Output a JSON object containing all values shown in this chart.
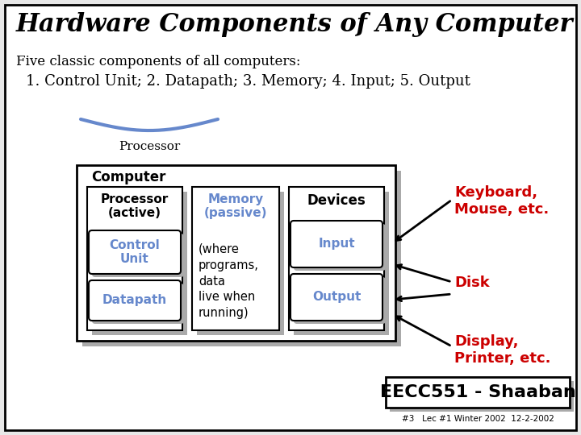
{
  "title": "Hardware Components of Any Computer",
  "subtitle": "Five classic components of all computers:",
  "components_line": "1. Control Unit; 2. Datapath; 3. Memory; 4. Input; 5. Output",
  "processor_label": "Processor",
  "computer_label": "Computer",
  "processor_box_label": "Processor\n(active)",
  "control_unit_label": "Control\nUnit",
  "datapath_label": "Datapath",
  "memory_label": "Memory\n(passive)",
  "memory_desc": "(where\nprograms,\ndata\nlive when\nrunning)",
  "devices_label": "Devices",
  "input_label": "Input",
  "output_label": "Output",
  "keyboard_label": "Keyboard,\nMouse, etc.",
  "disk_label": "Disk",
  "display_label": "Display,\nPrinter, etc.",
  "eecc_label": "EECC551 - Shaaban",
  "bottom_label": "#3   Lec #1 Winter 2002  12-2-2002",
  "bg_color": "#e8e8e8",
  "title_color": "#000000",
  "blue_color": "#6688cc",
  "red_color": "#cc0000",
  "box_bg": "#ffffff",
  "gray_bg": "#aaaaaa"
}
